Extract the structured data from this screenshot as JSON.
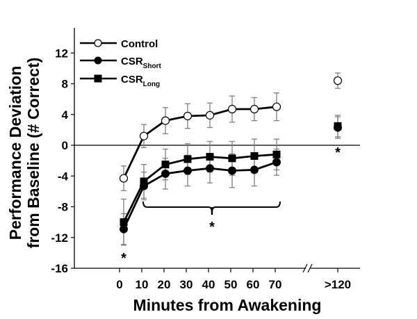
{
  "chart_data": {
    "type": "line",
    "title": "",
    "xlabel": "Minutes from Awakening",
    "ylabel_lines": [
      "Performance Deviation",
      "from Baseline (# Correct)"
    ],
    "ylabel": "Performance Deviation from Baseline (# Correct)",
    "ylim": [
      -16,
      14
    ],
    "yticks": [
      12,
      8,
      4,
      0,
      -4,
      -8,
      -12,
      -16
    ],
    "ytick_labels": [
      "12",
      "8",
      "4",
      "0",
      "-4",
      "-8",
      "-12",
      "-16"
    ],
    "categories": [
      "0",
      "10",
      "20",
      "30",
      "40",
      "50",
      "60",
      "70",
      ">120"
    ],
    "x": [
      0,
      10,
      20,
      30,
      40,
      50,
      60,
      70,
      120
    ],
    "axis_break": "between 70 and >120",
    "reference_line": 0,
    "grid": false,
    "legend_position": "top-left",
    "series": [
      {
        "name": "Control",
        "name_main": "Control",
        "name_sub": "",
        "marker": "open-circle",
        "values": [
          -4.3,
          1.2,
          3.2,
          3.8,
          3.9,
          4.7,
          4.7,
          5.0,
          8.4
        ],
        "error": [
          1.6,
          1.5,
          1.7,
          1.6,
          1.6,
          1.7,
          1.5,
          1.8,
          1.0
        ]
      },
      {
        "name": "CSR Short",
        "name_main": "CSR",
        "name_sub": "Short",
        "marker": "filled-circle",
        "values": [
          -10.9,
          -5.3,
          -3.7,
          -3.3,
          -3.0,
          -3.3,
          -3.2,
          -2.2,
          2.3
        ],
        "error": [
          2.0,
          1.8,
          2.0,
          2.0,
          1.9,
          2.2,
          2.1,
          1.7,
          1.4
        ]
      },
      {
        "name": "CSR Long",
        "name_main": "CSR",
        "name_sub": "Long",
        "marker": "filled-square",
        "values": [
          -10.0,
          -4.7,
          -2.5,
          -1.8,
          -1.5,
          -1.7,
          -1.4,
          -1.2,
          2.5
        ],
        "error": [
          3.0,
          2.2,
          2.0,
          2.0,
          2.0,
          2.2,
          2.2,
          2.0,
          1.4
        ]
      }
    ],
    "annotations": [
      {
        "text": "*",
        "at": "0",
        "note": "significance below 0-min points"
      },
      {
        "text": "*",
        "at": "10-70",
        "note": "bracket spanning 10 to 70 min"
      },
      {
        "text": "*",
        "at": ">120",
        "note": "significance below >120 points"
      }
    ]
  }
}
